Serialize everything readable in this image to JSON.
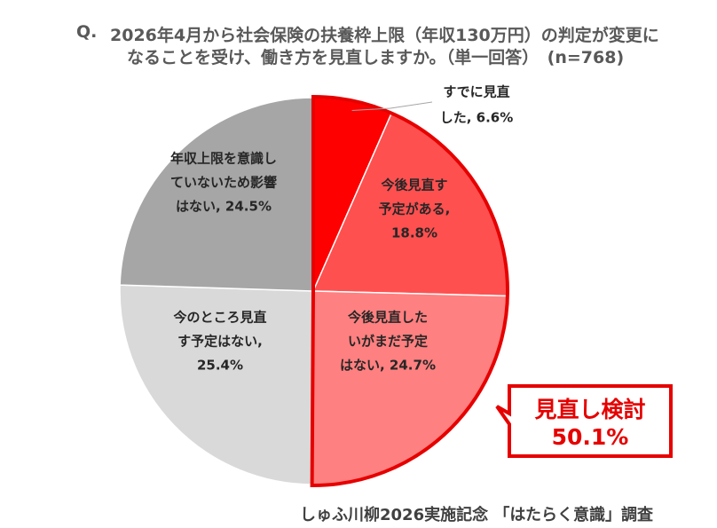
{
  "question": {
    "prefix": "Q.",
    "line1": "2026年4月から社会保険の扶養枠上限（年収130万円）の判定が変更に",
    "line2": "なることを受け、働き方を見直しますか。（単一回答）　(n=768)"
  },
  "chart_data": {
    "type": "pie",
    "n": 768,
    "slices": [
      {
        "label_lines": [
          "すでに見直",
          "した, 6.6%"
        ],
        "category": "すでに見直した",
        "value": 6.6,
        "color": "#ff0000"
      },
      {
        "label_lines": [
          "今後見直す",
          "予定がある,",
          "18.8%"
        ],
        "category": "今後見直す予定がある",
        "value": 18.8,
        "color": "#ff5050"
      },
      {
        "label_lines": [
          "今後見直した",
          "いがまだ予定",
          "はない, 24.7%"
        ],
        "category": "今後見直したいがまだ予定はない",
        "value": 24.7,
        "color": "#ff8080"
      },
      {
        "label_lines": [
          "今のところ見直",
          "す予定はない,",
          "25.4%"
        ],
        "category": "今のところ見直す予定はない",
        "value": 25.4,
        "color": "#d9d9d9"
      },
      {
        "label_lines": [
          "年収上限を意識し",
          "ていないため影響",
          "はない, 24.5%"
        ],
        "category": "年収上限を意識していないため影響はない",
        "value": 24.5,
        "color": "#a6a6a6"
      }
    ],
    "highlight": {
      "title": "見直し検討",
      "value_text": "50.1%",
      "sum_of": [
        "すでに見直した",
        "今後見直す予定がある",
        "今後見直したいがまだ予定はない"
      ],
      "border_color": "#e60000"
    }
  },
  "source": "しゅふ川柳2026実施記念 「はたらく意識」調査"
}
